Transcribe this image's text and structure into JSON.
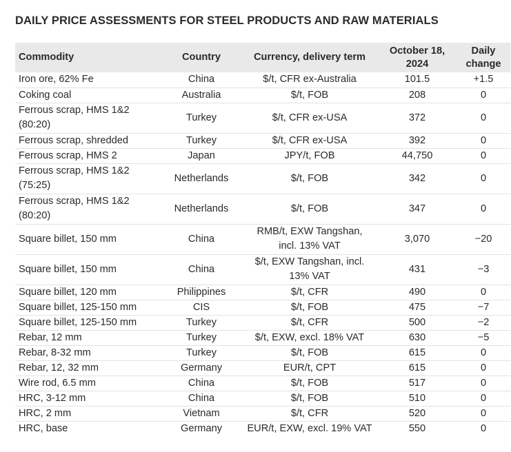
{
  "title": "DAILY PRICE ASSESSMENTS FOR STEEL PRODUCTS AND RAW MATERIALS",
  "headers": {
    "commodity": "Commodity",
    "country": "Country",
    "term": "Currency, delivery term",
    "date_line1": "October 18,",
    "date_line2": "2024",
    "change_line1": "Daily",
    "change_line2": "change"
  },
  "rows": [
    {
      "commodity": [
        "Iron ore, 62% Fe"
      ],
      "country": "China",
      "term": [
        "$/t, CFR ex-Australia"
      ],
      "price": "101.5",
      "change": "+1.5"
    },
    {
      "commodity": [
        "Coking coal"
      ],
      "country": "Australia",
      "term": [
        "$/t, FOB"
      ],
      "price": "208",
      "change": "0"
    },
    {
      "commodity": [
        "Ferrous scrap, HMS 1&2",
        "(80:20)"
      ],
      "country": "Turkey",
      "term": [
        "$/t, CFR ex-USA"
      ],
      "price": "372",
      "change": "0"
    },
    {
      "commodity": [
        "Ferrous scrap, shredded"
      ],
      "country": "Turkey",
      "term": [
        "$/t, CFR ex-USA"
      ],
      "price": "392",
      "change": "0"
    },
    {
      "commodity": [
        "Ferrous scrap, HMS 2"
      ],
      "country": "Japan",
      "term": [
        "JPY/t, FOB"
      ],
      "price": "44,750",
      "change": "0"
    },
    {
      "commodity": [
        "Ferrous scrap, HMS 1&2",
        "(75:25)"
      ],
      "country": "Netherlands",
      "term": [
        "$/t, FOB"
      ],
      "price": "342",
      "change": "0"
    },
    {
      "commodity": [
        "Ferrous scrap, HMS 1&2",
        "(80:20)"
      ],
      "country": "Netherlands",
      "term": [
        "$/t, FOB"
      ],
      "price": "347",
      "change": "0"
    },
    {
      "commodity": [
        "Square billet, 150 mm"
      ],
      "country": "China",
      "term": [
        "RMB/t, EXW Tangshan,",
        "incl. 13% VAT"
      ],
      "price": "3,070",
      "change": "−20"
    },
    {
      "commodity": [
        "Square billet, 150 mm"
      ],
      "country": "China",
      "term": [
        "$/t, EXW Tangshan, incl.",
        "13% VAT"
      ],
      "price": "431",
      "change": "−3"
    },
    {
      "commodity": [
        "Square billet, 120 mm"
      ],
      "country": "Philippines",
      "term": [
        "$/t, CFR"
      ],
      "price": "490",
      "change": "0"
    },
    {
      "commodity": [
        "Square billet, 125-150 mm"
      ],
      "country": "CIS",
      "term": [
        "$/t, FOB"
      ],
      "price": "475",
      "change": "−7"
    },
    {
      "commodity": [
        "Square billet, 125-150 mm"
      ],
      "country": "Turkey",
      "term": [
        "$/t, CFR"
      ],
      "price": "500",
      "change": "−2"
    },
    {
      "commodity": [
        "Rebar, 12 mm"
      ],
      "country": "Turkey",
      "term": [
        "$/t, EXW, excl. 18% VAT"
      ],
      "price": "630",
      "change": "−5"
    },
    {
      "commodity": [
        "Rebar, 8-32 mm"
      ],
      "country": "Turkey",
      "term": [
        "$/t, FOB"
      ],
      "price": "615",
      "change": "0"
    },
    {
      "commodity": [
        "Rebar, 12, 32 mm"
      ],
      "country": "Germany",
      "term": [
        "EUR/t, CPT"
      ],
      "price": "615",
      "change": "0"
    },
    {
      "commodity": [
        "Wire rod, 6.5 mm"
      ],
      "country": "China",
      "term": [
        "$/t, FOB"
      ],
      "price": "517",
      "change": "0"
    },
    {
      "commodity": [
        "HRC, 3-12 mm"
      ],
      "country": "China",
      "term": [
        "$/t, FOB"
      ],
      "price": "510",
      "change": "0"
    },
    {
      "commodity": [
        "HRC, 2 mm"
      ],
      "country": "Vietnam",
      "term": [
        "$/t, CFR"
      ],
      "price": "520",
      "change": "0"
    },
    {
      "commodity": [
        "HRC, base"
      ],
      "country": "Germany",
      "term": [
        "EUR/t, EXW, excl. 19% VAT"
      ],
      "price": "550",
      "change": "0"
    }
  ]
}
